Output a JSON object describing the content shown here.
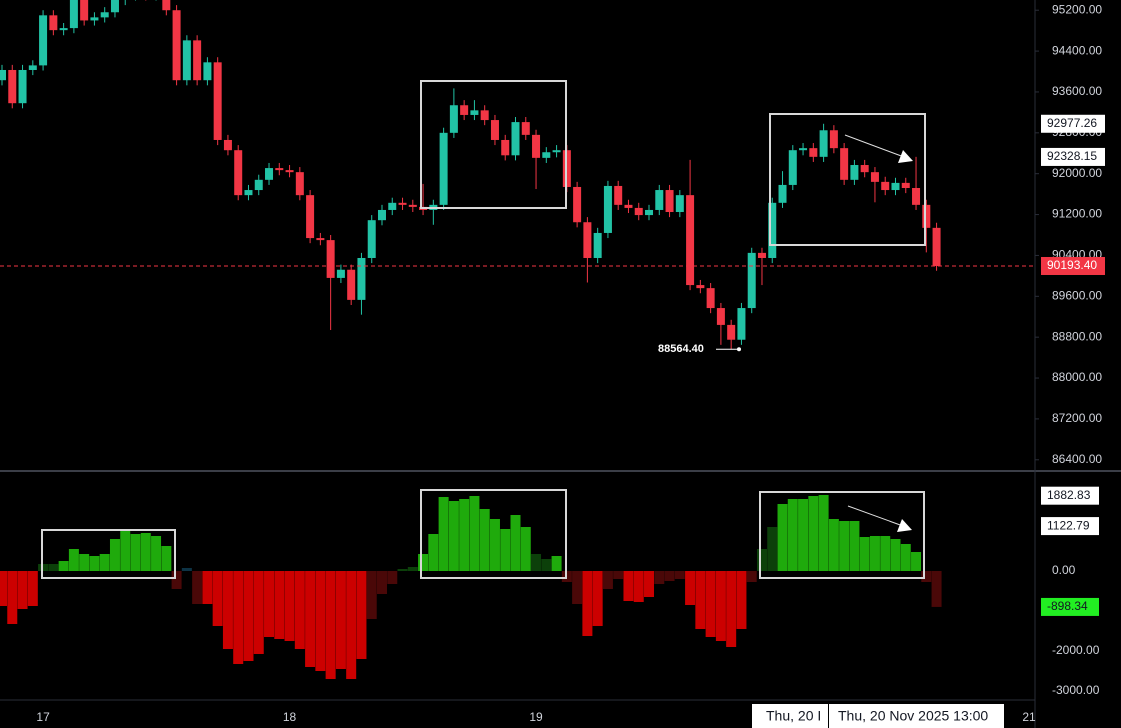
{
  "chart_data": [
    {
      "type": "candlestick",
      "categories": [
        null,
        null,
        null,
        null,
        "17",
        null,
        null,
        null,
        null,
        null,
        null,
        null,
        null,
        null,
        null,
        null,
        null,
        null,
        null,
        null,
        null,
        null,
        null,
        null,
        null,
        null,
        null,
        null,
        "18",
        null,
        null,
        null,
        null,
        null,
        null,
        null,
        null,
        null,
        null,
        null,
        null,
        null,
        null,
        null,
        null,
        null,
        null,
        null,
        null,
        null,
        null,
        null,
        "19",
        null,
        null,
        null,
        null,
        null,
        null,
        null,
        null,
        null,
        null,
        null,
        null,
        null,
        null,
        null,
        null,
        null,
        null,
        null,
        null,
        null,
        null,
        null,
        null,
        null,
        null,
        null,
        null,
        null,
        null,
        null,
        null,
        null,
        null,
        null,
        null,
        null,
        null,
        null,
        null,
        null,
        null,
        null,
        null,
        null,
        null,
        null,
        "21"
      ],
      "open": [
        93830,
        94030,
        93380,
        94030,
        94120,
        95100,
        94810,
        94850,
        95400,
        95000,
        95060,
        95160,
        95400,
        95490,
        95590,
        95490,
        95550,
        95200,
        93830,
        94610,
        93830,
        94180,
        92660,
        92460,
        91580,
        91680,
        91880,
        92110,
        92070,
        92030,
        91580,
        90740,
        90700,
        89960,
        90120,
        89530,
        90350,
        91090,
        91290,
        91430,
        91390,
        91350,
        91290,
        91390,
        92800,
        93340,
        93150,
        93240,
        93050,
        92660,
        92360,
        93010,
        92760,
        92310,
        92420,
        92460,
        91740,
        91050,
        90350,
        90840,
        91760,
        91390,
        91330,
        91190,
        91290,
        91680,
        91250,
        91580,
        89820,
        89760,
        89370,
        89040,
        88750,
        89370,
        90450,
        90350,
        91430,
        91780,
        92460,
        92500,
        92330,
        92850,
        92500,
        91880,
        92170,
        92030,
        91840,
        91680,
        91820,
        91720,
        91390,
        90940,
        null,
        null,
        null,
        null,
        null,
        null,
        null,
        null,
        null
      ],
      "high": [
        94130,
        94130,
        94130,
        94220,
        95200,
        95200,
        94950,
        95500,
        95500,
        95160,
        95260,
        95500,
        95590,
        95690,
        95690,
        95650,
        95650,
        95300,
        94710,
        94710,
        94280,
        94280,
        92760,
        92560,
        91780,
        91980,
        92210,
        92210,
        92170,
        92130,
        91680,
        90840,
        90800,
        90220,
        90220,
        90450,
        91190,
        91390,
        91530,
        91530,
        91490,
        91800,
        91490,
        92900,
        93670,
        93440,
        93440,
        93340,
        93150,
        92760,
        93110,
        93110,
        92860,
        92520,
        92560,
        92560,
        91840,
        91150,
        90940,
        91860,
        91860,
        91490,
        91430,
        91390,
        91780,
        91780,
        91680,
        92270,
        89920,
        89860,
        89470,
        89140,
        89470,
        90550,
        90550,
        91530,
        92050,
        92560,
        92600,
        92600,
        92977.26,
        92950,
        92600,
        92270,
        92270,
        92130,
        91940,
        91920,
        91920,
        92330,
        91490,
        91040,
        null,
        null,
        null,
        null,
        null,
        null,
        null,
        null,
        null
      ],
      "low": [
        93730,
        93280,
        93280,
        93930,
        94020,
        94710,
        94710,
        94750,
        94900,
        94900,
        94960,
        95060,
        95300,
        95390,
        95390,
        95390,
        95100,
        93730,
        93730,
        93730,
        93730,
        92560,
        92360,
        91480,
        91480,
        91580,
        91780,
        91970,
        91930,
        91480,
        90640,
        90600,
        88940,
        89860,
        89430,
        89240,
        90250,
        90990,
        91190,
        91290,
        91250,
        91190,
        91000,
        91290,
        92700,
        93050,
        93050,
        92950,
        92560,
        92260,
        92260,
        92660,
        91700,
        92210,
        92320,
        91640,
        90950,
        89870,
        90250,
        90740,
        91290,
        91230,
        91090,
        91090,
        91190,
        91150,
        91150,
        89720,
        89660,
        89270,
        88650,
        88564.4,
        88650,
        89270,
        89820,
        90250,
        91330,
        91680,
        92360,
        92230,
        92230,
        92400,
        91780,
        91780,
        91930,
        91440,
        91580,
        91580,
        91620,
        91290,
        90460,
        90100,
        null,
        null,
        null,
        null,
        null,
        null,
        null,
        null,
        null
      ],
      "close": [
        94030,
        93380,
        94030,
        94120,
        95100,
        94810,
        94850,
        95400,
        95000,
        95060,
        95160,
        95400,
        95490,
        95590,
        95490,
        95550,
        95200,
        93830,
        94610,
        93830,
        94180,
        92660,
        92460,
        91580,
        91680,
        91880,
        92110,
        92070,
        92030,
        91580,
        90740,
        90700,
        89960,
        90120,
        89530,
        90350,
        91090,
        91290,
        91430,
        91390,
        91350,
        91290,
        91390,
        92800,
        93340,
        93150,
        93240,
        93050,
        92660,
        92360,
        93010,
        92760,
        92310,
        92420,
        92460,
        91740,
        91050,
        90350,
        90840,
        91760,
        91390,
        91330,
        91190,
        91290,
        91680,
        91250,
        91580,
        89820,
        89760,
        89370,
        89040,
        88750,
        89370,
        90450,
        90350,
        91430,
        91780,
        92460,
        92500,
        92330,
        92850,
        92500,
        91880,
        92170,
        92030,
        91840,
        91680,
        91820,
        91720,
        91390,
        90940,
        90193.4,
        null,
        null,
        null,
        null,
        null,
        null,
        null,
        null,
        null
      ],
      "up_color": "#22c3a6",
      "down_color": "#f23645",
      "ylim": [
        86200,
        95400
      ],
      "yticks": [
        {
          "value": 95200,
          "label": "95200.00"
        },
        {
          "value": 94400,
          "label": "94400.00"
        },
        {
          "value": 93600,
          "label": "93600.00"
        },
        {
          "value": 92800,
          "label": "92800.00"
        },
        {
          "value": 92000,
          "label": "92000.00"
        },
        {
          "value": 91200,
          "label": "91200.00"
        },
        {
          "value": 90400,
          "label": "90400.00"
        },
        {
          "value": 89600,
          "label": "89600.00"
        },
        {
          "value": 88800,
          "label": "88800.00"
        },
        {
          "value": 88000,
          "label": "88000.00"
        },
        {
          "value": 87200,
          "label": "87200.00"
        },
        {
          "value": 86400,
          "label": "86400.00"
        }
      ],
      "price_labels": [
        {
          "value": 92977.26,
          "label": "92977.26"
        },
        {
          "value": 92328.15,
          "label": "92328.15"
        },
        {
          "value": 90193.4,
          "label": "90193.40"
        }
      ],
      "low_label": {
        "value": 88564.4,
        "label": "88564.40"
      }
    },
    {
      "type": "bar",
      "values": [
        -875,
        -1325,
        -950,
        -875,
        175,
        175,
        250,
        550,
        425,
        375,
        425,
        800,
        1000,
        925,
        950,
        875,
        625,
        -450,
        75,
        -825,
        -825,
        -1375,
        -1950,
        -2325,
        -2250,
        -2075,
        -1650,
        -1700,
        -1750,
        -1950,
        -2400,
        -2500,
        -2700,
        -2450,
        -2700,
        -2200,
        -1200,
        -575,
        -325,
        50,
        100,
        425,
        925,
        1850,
        1750,
        1800,
        1875,
        1550,
        1300,
        1050,
        1400,
        1100,
        425,
        300,
        375,
        -275,
        -825,
        -1625,
        -1375,
        -450,
        -200,
        -750,
        -775,
        -650,
        -325,
        -250,
        -200,
        -850,
        -1450,
        -1650,
        -1750,
        -1900,
        -1450,
        -275,
        550,
        1100,
        1675,
        1800,
        1800,
        1875,
        1900,
        1300,
        1250,
        1250,
        850,
        875,
        875,
        800,
        675,
        475,
        -275,
        -898.34,
        null,
        null,
        null,
        null,
        null,
        null,
        null,
        null,
        null
      ],
      "colors": [
        "#cc0000",
        "#cc0000",
        "#cc0000",
        "#cc0000",
        "#0c400a",
        "#0c400a",
        "#1faa0c",
        "#1faa0c",
        "#1faa0c",
        "#1faa0c",
        "#1faa0c",
        "#1faa0c",
        "#1faa0c",
        "#1faa0c",
        "#1faa0c",
        "#1faa0c",
        "#1faa0c",
        "#4a0808",
        "#0d3345",
        "#4a0808",
        "#cc0000",
        "#cc0000",
        "#cc0000",
        "#cc0000",
        "#cc0000",
        "#cc0000",
        "#cc0000",
        "#cc0000",
        "#cc0000",
        "#cc0000",
        "#cc0000",
        "#cc0000",
        "#cc0000",
        "#cc0000",
        "#cc0000",
        "#cc0000",
        "#4a0808",
        "#4a0808",
        "#4a0808",
        "#0c400a",
        "#0c400a",
        "#1faa0c",
        "#1faa0c",
        "#1faa0c",
        "#1faa0c",
        "#1faa0c",
        "#1faa0c",
        "#1faa0c",
        "#1faa0c",
        "#1faa0c",
        "#1faa0c",
        "#1faa0c",
        "#0c400a",
        "#0c400a",
        "#1faa0c",
        "#4a0808",
        "#4a0808",
        "#cc0000",
        "#cc0000",
        "#4a0808",
        "#4a0808",
        "#cc0000",
        "#cc0000",
        "#cc0000",
        "#4a0808",
        "#4a0808",
        "#4a0808",
        "#cc0000",
        "#cc0000",
        "#cc0000",
        "#cc0000",
        "#cc0000",
        "#cc0000",
        "#4a0808",
        "#0c400a",
        "#0c400a",
        "#1faa0c",
        "#1faa0c",
        "#1faa0c",
        "#1faa0c",
        "#1faa0c",
        "#1faa0c",
        "#1faa0c",
        "#1faa0c",
        "#1faa0c",
        "#1faa0c",
        "#1faa0c",
        "#1faa0c",
        "#1faa0c",
        "#1faa0c",
        "#4a0808",
        "#4a0808",
        null,
        null,
        null,
        null,
        null,
        null,
        null,
        null,
        null
      ],
      "ylim": [
        -3225,
        2450
      ],
      "yticks": [
        {
          "value": 0,
          "label": "0.00"
        },
        {
          "value": -2000,
          "label": "-2000.00"
        },
        {
          "value": -3000,
          "label": "-3000.00"
        }
      ],
      "level_labels": [
        {
          "value": 1882.83,
          "label": "1882.83"
        },
        {
          "value": 1122.79,
          "label": "1122.79"
        },
        {
          "value": -898.34,
          "label": "-898.34"
        }
      ],
      "crosshair_labels": [
        "Thu, 20 I",
        "Thu, 20 Nov 2025 13:00"
      ]
    }
  ]
}
